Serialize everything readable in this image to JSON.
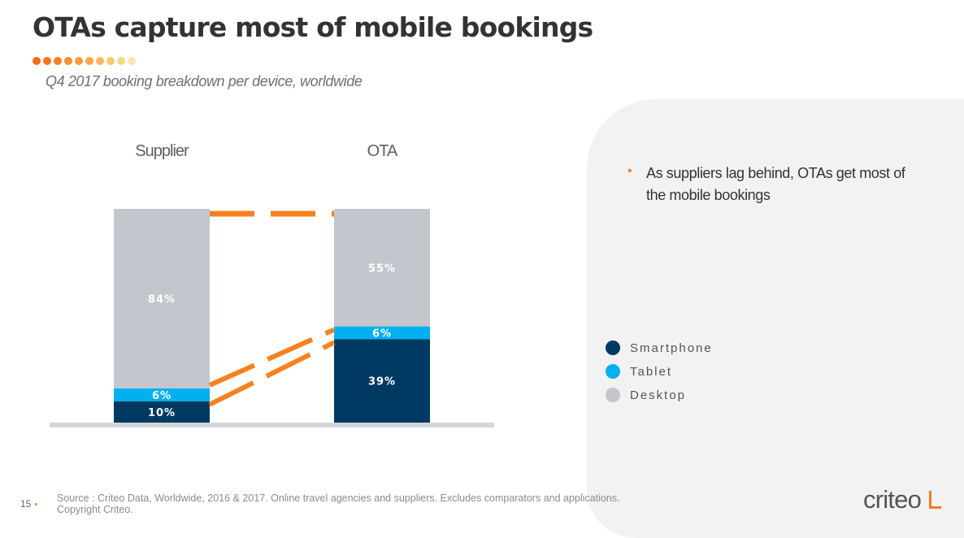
{
  "header": {
    "title": "OTAs capture most of mobile bookings",
    "subtitle": "Q4 2017 booking breakdown per device, worldwide",
    "dot_colors": [
      "#f26b21",
      "#f47722",
      "#f58326",
      "#f6902e",
      "#f79d3a",
      "#f8aa4a",
      "#f9b85d",
      "#fac774",
      "#fbd690",
      "#fce4b0"
    ]
  },
  "chart_data": {
    "type": "bar",
    "stacked": true,
    "categories": [
      "Supplier",
      "OTA"
    ],
    "series": [
      {
        "name": "Smartphone",
        "color": "#003a63",
        "values": [
          10,
          39
        ],
        "labels": [
          "10%",
          "39%"
        ]
      },
      {
        "name": "Tablet",
        "color": "#00b0f0",
        "values": [
          6,
          6
        ],
        "labels": [
          "6%",
          "6%"
        ]
      },
      {
        "name": "Desktop",
        "color": "#c3c6cc",
        "values": [
          84,
          55
        ],
        "labels": [
          "84%",
          "55%"
        ]
      }
    ],
    "ylim": [
      0,
      100
    ],
    "grid": false,
    "legend_position": "right",
    "connector_color": "#f58220"
  },
  "bullet": {
    "text": "As suppliers lag behind, OTAs get most of the mobile bookings",
    "bullet_color": "#f57c20"
  },
  "footer": {
    "page_number": "15",
    "source_line1": "Source : Criteo Data, Worldwide, 2016 & 2017. Online travel agencies and suppliers. Excludes comparators and applications.",
    "source_line2": "Copyright Criteo.",
    "logo_text": "criteo"
  }
}
